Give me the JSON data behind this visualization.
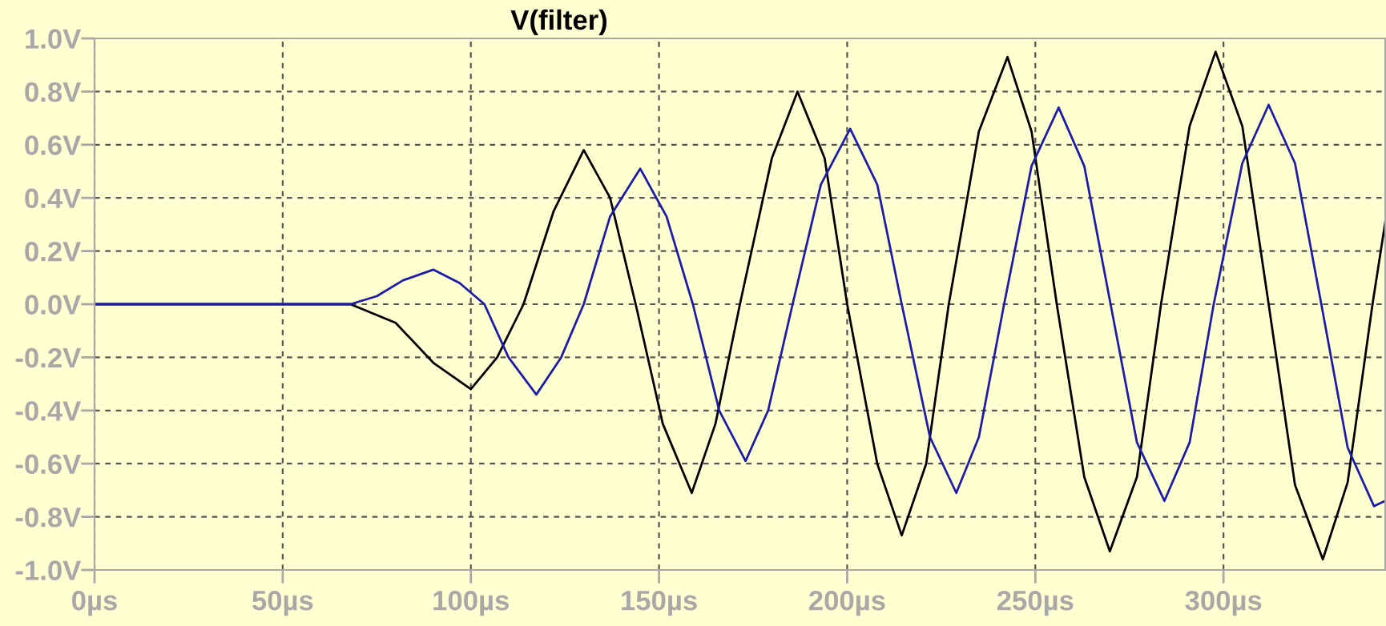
{
  "chart_data": {
    "type": "line",
    "title": "V(filter)",
    "xlim": [
      0,
      343
    ],
    "ylim": [
      -1.0,
      1.0
    ],
    "xticks": [
      {
        "value": 0,
        "label": "0µs"
      },
      {
        "value": 50,
        "label": "50µs"
      },
      {
        "value": 100,
        "label": "100µs"
      },
      {
        "value": 150,
        "label": "150µs"
      },
      {
        "value": 200,
        "label": "200µs"
      },
      {
        "value": 250,
        "label": "250µs"
      },
      {
        "value": 300,
        "label": "300µs"
      }
    ],
    "yticks": [
      {
        "value": -1.0,
        "label": "-1.0V"
      },
      {
        "value": -0.8,
        "label": "-0.8V"
      },
      {
        "value": -0.6,
        "label": "-0.6V"
      },
      {
        "value": -0.4,
        "label": "-0.4V"
      },
      {
        "value": -0.2,
        "label": "-0.2V"
      },
      {
        "value": 0.0,
        "label": "0.0V"
      },
      {
        "value": 0.2,
        "label": "0.2V"
      },
      {
        "value": 0.4,
        "label": "0.4V"
      },
      {
        "value": 0.6,
        "label": "0.6V"
      },
      {
        "value": 0.8,
        "label": "0.8V"
      },
      {
        "value": 1.0,
        "label": "1.0V"
      }
    ],
    "grid": true,
    "marker": "none",
    "line_style": "solid",
    "series": [
      {
        "color": "#000000",
        "x": [
          0,
          68,
          80,
          90,
          100,
          107,
          114,
          122,
          130,
          137,
          143.8,
          151,
          158.7,
          165,
          171.5,
          180,
          186.8,
          194,
          200,
          208,
          214.5,
          221,
          227,
          235,
          242.6,
          249,
          255.7,
          263,
          269.8,
          277,
          283.4,
          291,
          297.9,
          305,
          312,
          319,
          326.4,
          333,
          339.6,
          343
        ],
        "values": [
          0,
          0,
          -0.07,
          -0.22,
          -0.32,
          -0.2,
          0,
          0.35,
          0.58,
          0.4,
          0,
          -0.45,
          -0.71,
          -0.45,
          0,
          0.55,
          0.8,
          0.55,
          0,
          -0.6,
          -0.87,
          -0.6,
          0,
          0.65,
          0.93,
          0.65,
          0,
          -0.65,
          -0.93,
          -0.65,
          0,
          0.67,
          0.95,
          0.67,
          0,
          -0.68,
          -0.96,
          -0.67,
          0,
          0.31
        ]
      },
      {
        "color": "#1c1ca8",
        "x": [
          0,
          68,
          75,
          82,
          90,
          97,
          103.6,
          110,
          117.4,
          124,
          130,
          137,
          145,
          152,
          159,
          166,
          173,
          179,
          185.5,
          193,
          200.8,
          208,
          214.5,
          222,
          229,
          235,
          241.7,
          249,
          256.2,
          263,
          270,
          277,
          284.3,
          291,
          297.4,
          305,
          312,
          319,
          326,
          333,
          340,
          343
        ],
        "values": [
          0,
          0,
          0.03,
          0.09,
          0.13,
          0.08,
          0,
          -0.2,
          -0.34,
          -0.2,
          0,
          0.33,
          0.51,
          0.33,
          0,
          -0.4,
          -0.59,
          -0.4,
          0,
          0.45,
          0.66,
          0.45,
          0,
          -0.5,
          -0.71,
          -0.5,
          0,
          0.52,
          0.74,
          0.52,
          0,
          -0.52,
          -0.74,
          -0.52,
          0,
          0.53,
          0.75,
          0.53,
          0,
          -0.54,
          -0.76,
          -0.74
        ]
      }
    ]
  }
}
